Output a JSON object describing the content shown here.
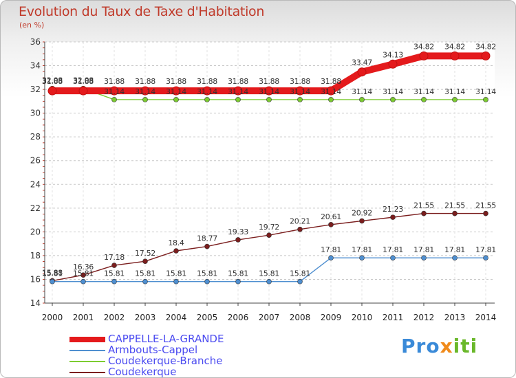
{
  "header": {
    "title": "Evolution du Taux de Taxe d'Habitation",
    "unit": "(en %)"
  },
  "brand": {
    "p1": "Pro",
    "p2": "x",
    "p3": "iti"
  },
  "chart_data": {
    "type": "line",
    "title": "Evolution du Taux de Taxe d'Habitation",
    "ylabel": "(en %)",
    "x": [
      2000,
      2001,
      2002,
      2003,
      2004,
      2005,
      2006,
      2007,
      2008,
      2009,
      2010,
      2011,
      2012,
      2013,
      2014
    ],
    "ylim": [
      14,
      36
    ],
    "yticks": [
      14,
      16,
      18,
      20,
      22,
      24,
      26,
      28,
      30,
      32,
      34,
      36
    ],
    "grid": "horizontal dashed",
    "legend_position": "bottom-left",
    "series": [
      {
        "name": "CAPPELLE-LA-GRANDE",
        "color": "#e41a1c",
        "values": [
          31.88,
          31.88,
          31.88,
          31.88,
          31.88,
          31.88,
          31.88,
          31.88,
          31.88,
          31.88,
          33.47,
          34.13,
          34.82,
          34.82,
          34.82
        ],
        "labels": [
          "31.88",
          "31.88",
          "31.88",
          "31.88",
          "31.88",
          "31.88",
          "31.88",
          "31.88",
          "31.88",
          "31.88",
          "33.47",
          "34.13",
          "34.82",
          "34.82",
          "34.82"
        ]
      },
      {
        "name": "Armbouts-Cappel",
        "color": "#4f8fd0",
        "values": [
          15.81,
          15.81,
          15.81,
          15.81,
          15.81,
          15.81,
          15.81,
          15.81,
          15.81,
          17.81,
          17.81,
          17.81,
          17.81,
          17.81,
          17.81
        ],
        "labels": [
          "15.81",
          "15.81",
          "15.81",
          "15.81",
          "15.81",
          "15.81",
          "15.81",
          "15.81",
          "15.81",
          "17.81",
          "17.81",
          "17.81",
          "17.81",
          "17.81",
          "17.81"
        ]
      },
      {
        "name": "Coudekerque-Branche",
        "color": "#7ccc30",
        "values": [
          32.08,
          32.08,
          31.14,
          31.14,
          31.14,
          31.14,
          31.14,
          31.14,
          31.14,
          31.14,
          31.14,
          31.14,
          31.14,
          31.14,
          31.14
        ],
        "labels": [
          "32.08",
          "32.08",
          "31.14",
          "31.14",
          "31.14",
          "31.14",
          "31.14",
          "31.14",
          "31.14",
          "31.14",
          "31.14",
          "31.14",
          "31.14",
          "31.14",
          "31.14"
        ]
      },
      {
        "name": "Coudekerque",
        "color": "#7b1e1e",
        "values": [
          15.88,
          16.36,
          17.18,
          17.52,
          18.4,
          18.77,
          19.33,
          19.72,
          20.21,
          20.61,
          20.92,
          21.23,
          21.55,
          21.55,
          21.55
        ],
        "labels": [
          "15.88",
          "16.36",
          "17.18",
          "17.52",
          "18.4",
          "18.77",
          "19.33",
          "19.72",
          "20.21",
          "20.61",
          "20.92",
          "21.23",
          "21.55",
          "21.55",
          "21.55"
        ]
      }
    ]
  }
}
